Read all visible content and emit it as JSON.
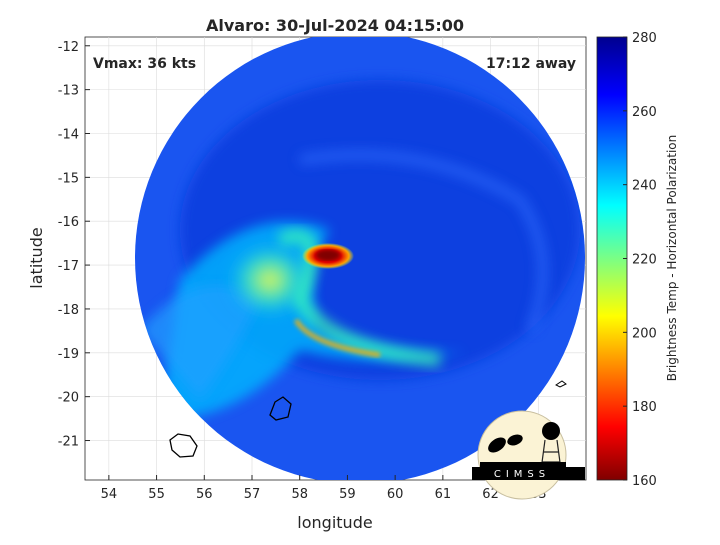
{
  "chart_data": {
    "type": "heatmap",
    "title": "Alvaro: 30-Jul-2024 04:15:00",
    "xlabel": "longitude",
    "ylabel": "latitude",
    "xlim": [
      53.5,
      64
    ],
    "ylim": [
      -21.9,
      -11.8
    ],
    "xticks": [
      54,
      55,
      56,
      57,
      58,
      59,
      60,
      61,
      62,
      63
    ],
    "yticks": [
      -12,
      -13,
      -14,
      -15,
      -16,
      -17,
      -18,
      -19,
      -20,
      -21
    ],
    "grid": true,
    "colorbar": {
      "label": "Brightness Temp - Horizontal Polarization",
      "range": [
        160,
        280
      ],
      "ticks": [
        160,
        180,
        200,
        220,
        240,
        260,
        280
      ],
      "colormap": "jet"
    },
    "annotations": {
      "vmax": "Vmax: 36 kts",
      "away": "17:12 away"
    },
    "features": {
      "cold_core_center": [
        58.5,
        -16.8
      ],
      "cold_core_min_temp": 165
    }
  },
  "logo": {
    "text": "CIMSS"
  }
}
